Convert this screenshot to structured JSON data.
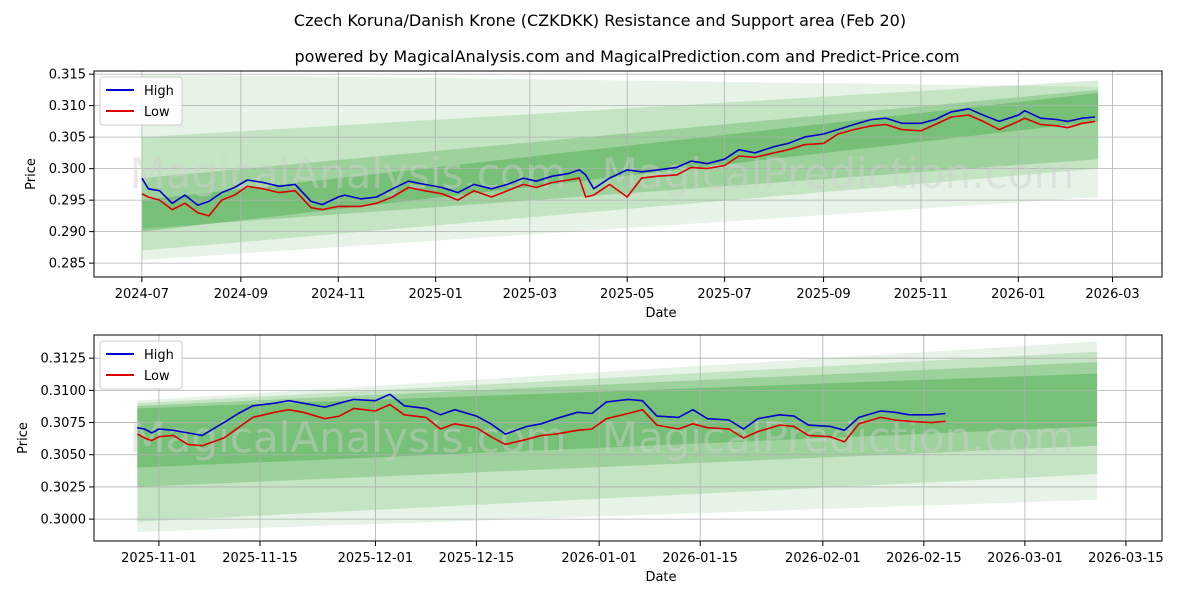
{
  "header": {
    "title": "Czech Koruna/Danish Krone (CZKDKK) Resistance and Support area (Feb 20)",
    "subtitle": "powered by MagicalAnalysis.com and MagicalPrediction.com and Predict-Price.com"
  },
  "watermarks": [
    "MagicalAnalysis.com",
    "MagicalPrediction.com"
  ],
  "colors": {
    "high": "#0000cc",
    "low": "#dd0000",
    "band": "#2e9e2e",
    "grid": "#b0b0b0"
  },
  "chart_data": [
    {
      "type": "line",
      "name": "top-chart",
      "xlabel": "Date",
      "ylabel": "Price",
      "xlim": [
        "2024-06-01",
        "2026-04-01"
      ],
      "ylim": [
        0.2828,
        0.3155
      ],
      "xticks": [
        "2024-07",
        "2024-09",
        "2024-11",
        "2025-01",
        "2025-03",
        "2025-05",
        "2025-07",
        "2025-09",
        "2025-11",
        "2026-01",
        "2026-03"
      ],
      "yticks": [
        "0.285",
        "0.290",
        "0.295",
        "0.300",
        "0.305",
        "0.310",
        "0.315"
      ],
      "legend": {
        "position": "top-left",
        "entries": [
          "High",
          "Low"
        ]
      },
      "grid": true,
      "bands": [
        {
          "x": [
            "2024-07-01",
            "2026-02-20"
          ],
          "start": [
            0.2855,
            0.315
          ],
          "end": [
            0.2955,
            0.313
          ],
          "opacity": 0.12
        },
        {
          "x": [
            "2024-07-01",
            "2026-02-20"
          ],
          "start": [
            0.287,
            0.305
          ],
          "end": [
            0.3,
            0.314
          ],
          "opacity": 0.18
        },
        {
          "x": [
            "2024-07-01",
            "2026-02-20"
          ],
          "start": [
            0.2905,
            0.2985
          ],
          "end": [
            0.3015,
            0.3125
          ],
          "opacity": 0.26
        },
        {
          "x": [
            "2024-07-01",
            "2026-02-20"
          ],
          "start": [
            0.29,
            0.295
          ],
          "end": [
            0.3075,
            0.312
          ],
          "opacity": 0.34
        }
      ],
      "series": [
        {
          "name": "High",
          "x": [
            "2024-07-01",
            "2024-07-05",
            "2024-07-12",
            "2024-07-20",
            "2024-07-28",
            "2024-08-05",
            "2024-08-12",
            "2024-08-20",
            "2024-08-28",
            "2024-09-05",
            "2024-09-15",
            "2024-09-25",
            "2024-10-05",
            "2024-10-15",
            "2024-10-22",
            "2024-11-01",
            "2024-11-05",
            "2024-11-15",
            "2024-11-25",
            "2024-12-05",
            "2024-12-15",
            "2024-12-25",
            "2025-01-05",
            "2025-01-15",
            "2025-01-25",
            "2025-02-05",
            "2025-02-15",
            "2025-02-25",
            "2025-03-05",
            "2025-03-15",
            "2025-03-25",
            "2025-04-01",
            "2025-04-05",
            "2025-04-10",
            "2025-04-20",
            "2025-05-01",
            "2025-05-10",
            "2025-05-20",
            "2025-06-01",
            "2025-06-10",
            "2025-06-20",
            "2025-07-01",
            "2025-07-10",
            "2025-07-20",
            "2025-08-01",
            "2025-08-10",
            "2025-08-20",
            "2025-09-01",
            "2025-09-10",
            "2025-09-20",
            "2025-10-01",
            "2025-10-10",
            "2025-10-20",
            "2025-11-01",
            "2025-11-10",
            "2025-11-20",
            "2025-12-01",
            "2025-12-10",
            "2025-12-20",
            "2026-01-01",
            "2026-01-05",
            "2026-01-15",
            "2026-01-25",
            "2026-02-01",
            "2026-02-10",
            "2026-02-18"
          ],
          "values": [
            0.2985,
            0.2968,
            0.2965,
            0.2945,
            0.2958,
            0.2942,
            0.2948,
            0.2962,
            0.297,
            0.2982,
            0.2978,
            0.2972,
            0.2975,
            0.2948,
            0.2943,
            0.2955,
            0.2958,
            0.2952,
            0.2955,
            0.2968,
            0.298,
            0.2975,
            0.297,
            0.2962,
            0.2975,
            0.2968,
            0.2975,
            0.2985,
            0.298,
            0.2988,
            0.2992,
            0.2998,
            0.299,
            0.2968,
            0.2985,
            0.2998,
            0.2995,
            0.2998,
            0.3002,
            0.3012,
            0.3008,
            0.3015,
            0.303,
            0.3025,
            0.3035,
            0.304,
            0.305,
            0.3055,
            0.3062,
            0.307,
            0.3078,
            0.308,
            0.3072,
            0.3072,
            0.3078,
            0.309,
            0.3095,
            0.3085,
            0.3075,
            0.3085,
            0.3092,
            0.308,
            0.3078,
            0.3075,
            0.308,
            0.3082
          ]
        },
        {
          "name": "Low",
          "x": [
            "2024-07-01",
            "2024-07-05",
            "2024-07-12",
            "2024-07-20",
            "2024-07-28",
            "2024-08-05",
            "2024-08-12",
            "2024-08-20",
            "2024-08-28",
            "2024-09-05",
            "2024-09-15",
            "2024-09-25",
            "2024-10-05",
            "2024-10-15",
            "2024-10-22",
            "2024-11-01",
            "2024-11-05",
            "2024-11-15",
            "2024-11-25",
            "2024-12-05",
            "2024-12-15",
            "2024-12-25",
            "2025-01-05",
            "2025-01-15",
            "2025-01-25",
            "2025-02-05",
            "2025-02-15",
            "2025-02-25",
            "2025-03-05",
            "2025-03-15",
            "2025-03-25",
            "2025-04-01",
            "2025-04-05",
            "2025-04-10",
            "2025-04-20",
            "2025-05-01",
            "2025-05-10",
            "2025-05-20",
            "2025-06-01",
            "2025-06-10",
            "2025-06-20",
            "2025-07-01",
            "2025-07-10",
            "2025-07-20",
            "2025-08-01",
            "2025-08-10",
            "2025-08-20",
            "2025-09-01",
            "2025-09-10",
            "2025-09-20",
            "2025-10-01",
            "2025-10-10",
            "2025-10-20",
            "2025-11-01",
            "2025-11-10",
            "2025-11-20",
            "2025-12-01",
            "2025-12-10",
            "2025-12-20",
            "2026-01-01",
            "2026-01-05",
            "2026-01-15",
            "2026-01-25",
            "2026-02-01",
            "2026-02-10",
            "2026-02-18"
          ],
          "values": [
            0.296,
            0.2955,
            0.295,
            0.2935,
            0.2945,
            0.293,
            0.2925,
            0.295,
            0.2958,
            0.2972,
            0.2968,
            0.2962,
            0.2965,
            0.2938,
            0.2935,
            0.294,
            0.294,
            0.294,
            0.2945,
            0.2955,
            0.297,
            0.2965,
            0.296,
            0.295,
            0.2965,
            0.2955,
            0.2965,
            0.2975,
            0.297,
            0.2978,
            0.2982,
            0.2985,
            0.2955,
            0.2958,
            0.2975,
            0.2955,
            0.2985,
            0.2988,
            0.299,
            0.3002,
            0.3,
            0.3005,
            0.302,
            0.3018,
            0.3025,
            0.303,
            0.3038,
            0.304,
            0.3055,
            0.3062,
            0.3068,
            0.307,
            0.3062,
            0.306,
            0.307,
            0.3082,
            0.3085,
            0.3075,
            0.3062,
            0.3075,
            0.308,
            0.307,
            0.3068,
            0.3065,
            0.3072,
            0.3075
          ]
        }
      ]
    },
    {
      "type": "line",
      "name": "bottom-chart",
      "xlabel": "Date",
      "ylabel": "Price",
      "xlim": [
        "2025-10-23",
        "2026-03-20"
      ],
      "ylim": [
        0.2983,
        0.3143
      ],
      "xticks": [
        "2025-11-01",
        "2025-11-15",
        "2025-12-01",
        "2025-12-15",
        "2026-01-01",
        "2026-01-15",
        "2026-02-01",
        "2026-02-15",
        "2026-03-01",
        "2026-03-15"
      ],
      "yticks": [
        "0.3000",
        "0.3025",
        "0.3050",
        "0.3075",
        "0.3100",
        "0.3125"
      ],
      "legend": {
        "position": "top-left",
        "entries": [
          "High",
          "Low"
        ]
      },
      "grid": true,
      "bands": [
        {
          "x": [
            "2025-10-29",
            "2026-03-11"
          ],
          "start": [
            0.299,
            0.3092
          ],
          "end": [
            0.3015,
            0.3138
          ],
          "opacity": 0.12
        },
        {
          "x": [
            "2025-10-29",
            "2026-03-11"
          ],
          "start": [
            0.2998,
            0.309
          ],
          "end": [
            0.3035,
            0.313
          ],
          "opacity": 0.18
        },
        {
          "x": [
            "2025-10-29",
            "2026-03-11"
          ],
          "start": [
            0.3025,
            0.3088
          ],
          "end": [
            0.3057,
            0.3122
          ],
          "opacity": 0.26
        },
        {
          "x": [
            "2025-10-29",
            "2026-03-11"
          ],
          "start": [
            0.304,
            0.3086
          ],
          "end": [
            0.3072,
            0.3113
          ],
          "opacity": 0.34
        }
      ],
      "series": [
        {
          "name": "High",
          "x": [
            "2025-10-29",
            "2025-10-30",
            "2025-10-31",
            "2025-11-01",
            "2025-11-03",
            "2025-11-05",
            "2025-11-07",
            "2025-11-10",
            "2025-11-12",
            "2025-11-14",
            "2025-11-17",
            "2025-11-19",
            "2025-11-21",
            "2025-11-24",
            "2025-11-26",
            "2025-11-28",
            "2025-12-01",
            "2025-12-03",
            "2025-12-05",
            "2025-12-08",
            "2025-12-10",
            "2025-12-12",
            "2025-12-15",
            "2025-12-17",
            "2025-12-19",
            "2025-12-22",
            "2025-12-24",
            "2025-12-26",
            "2025-12-29",
            "2025-12-31",
            "2026-01-02",
            "2026-01-05",
            "2026-01-07",
            "2026-01-09",
            "2026-01-12",
            "2026-01-14",
            "2026-01-16",
            "2026-01-19",
            "2026-01-21",
            "2026-01-23",
            "2026-01-26",
            "2026-01-28",
            "2026-01-30",
            "2026-02-02",
            "2026-02-04",
            "2026-02-06",
            "2026-02-09",
            "2026-02-11",
            "2026-02-13",
            "2026-02-16",
            "2026-02-18"
          ],
          "values": [
            0.3071,
            0.307,
            0.3067,
            0.307,
            0.3069,
            0.3067,
            0.3065,
            0.3075,
            0.3082,
            0.3088,
            0.309,
            0.3092,
            0.309,
            0.3087,
            0.309,
            0.3093,
            0.3092,
            0.3097,
            0.3088,
            0.3086,
            0.3081,
            0.3085,
            0.308,
            0.3074,
            0.3066,
            0.3072,
            0.3074,
            0.3078,
            0.3083,
            0.3082,
            0.3091,
            0.3093,
            0.3092,
            0.308,
            0.3079,
            0.3085,
            0.3078,
            0.3077,
            0.307,
            0.3078,
            0.3081,
            0.308,
            0.3073,
            0.3072,
            0.3069,
            0.3079,
            0.3084,
            0.3083,
            0.3081,
            0.3081,
            0.3082
          ]
        },
        {
          "name": "Low",
          "x": [
            "2025-10-29",
            "2025-10-30",
            "2025-10-31",
            "2025-11-01",
            "2025-11-03",
            "2025-11-05",
            "2025-11-07",
            "2025-11-10",
            "2025-11-12",
            "2025-11-14",
            "2025-11-17",
            "2025-11-19",
            "2025-11-21",
            "2025-11-24",
            "2025-11-26",
            "2025-11-28",
            "2025-12-01",
            "2025-12-03",
            "2025-12-05",
            "2025-12-08",
            "2025-12-10",
            "2025-12-12",
            "2025-12-15",
            "2025-12-17",
            "2025-12-19",
            "2025-12-22",
            "2025-12-24",
            "2025-12-26",
            "2025-12-29",
            "2025-12-31",
            "2026-01-02",
            "2026-01-05",
            "2026-01-07",
            "2026-01-09",
            "2026-01-12",
            "2026-01-14",
            "2026-01-16",
            "2026-01-19",
            "2026-01-21",
            "2026-01-23",
            "2026-01-26",
            "2026-01-28",
            "2026-01-30",
            "2026-02-02",
            "2026-02-04",
            "2026-02-06",
            "2026-02-09",
            "2026-02-11",
            "2026-02-13",
            "2026-02-16",
            "2026-02-18"
          ],
          "values": [
            0.3066,
            0.3063,
            0.3061,
            0.3064,
            0.3065,
            0.3058,
            0.3057,
            0.3063,
            0.3071,
            0.3079,
            0.3083,
            0.3085,
            0.3083,
            0.3078,
            0.308,
            0.3086,
            0.3084,
            0.3089,
            0.3081,
            0.3079,
            0.307,
            0.3074,
            0.3071,
            0.3064,
            0.3058,
            0.3062,
            0.3065,
            0.3066,
            0.3069,
            0.307,
            0.3078,
            0.3082,
            0.3085,
            0.3073,
            0.307,
            0.3074,
            0.3071,
            0.307,
            0.3063,
            0.3068,
            0.3073,
            0.3072,
            0.3065,
            0.3064,
            0.306,
            0.3074,
            0.3079,
            0.3077,
            0.3076,
            0.3075,
            0.3076
          ]
        }
      ]
    }
  ]
}
